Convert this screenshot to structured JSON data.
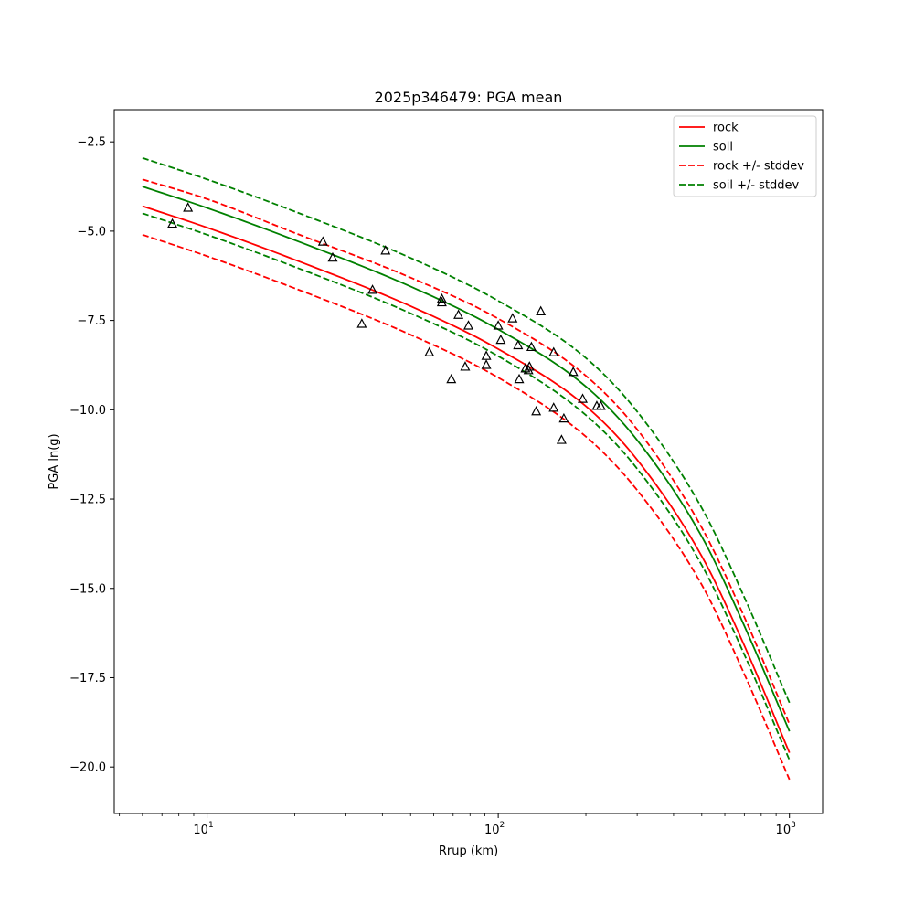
{
  "chart_data": {
    "type": "line",
    "title": "2025p346479: PGA mean",
    "xlabel": "Rrup (km)",
    "ylabel": "PGA ln(g)",
    "xscale": "log",
    "xlim": [
      4.8,
      1300
    ],
    "ylim": [
      -21.3,
      -1.6
    ],
    "xticks": [
      {
        "value": 10,
        "base": "10",
        "exp": "1"
      },
      {
        "value": 100,
        "base": "10",
        "exp": "2"
      },
      {
        "value": 1000,
        "base": "10",
        "exp": "3"
      }
    ],
    "yticks": [
      {
        "value": -2.5,
        "label": "−2.5"
      },
      {
        "value": -5.0,
        "label": "−5.0"
      },
      {
        "value": -7.5,
        "label": "−7.5"
      },
      {
        "value": -10.0,
        "label": "−10.0"
      },
      {
        "value": -12.5,
        "label": "−12.5"
      },
      {
        "value": -15.0,
        "label": "−15.0"
      },
      {
        "value": -17.5,
        "label": "−17.5"
      },
      {
        "value": -20.0,
        "label": "−20.0"
      }
    ],
    "grid": false,
    "legend_position": "top-right",
    "series": [
      {
        "name": "rock",
        "color": "#ff0000",
        "style": "solid",
        "x": [
          6,
          10,
          20,
          50,
          100,
          200,
          300,
          500,
          700,
          1000
        ],
        "y": [
          -4.3,
          -4.9,
          -5.8,
          -7.1,
          -8.3,
          -9.9,
          -11.4,
          -14.1,
          -16.6,
          -19.6
        ]
      },
      {
        "name": "soil",
        "color": "#008000",
        "style": "solid",
        "x": [
          6,
          10,
          20,
          50,
          100,
          200,
          300,
          500,
          700,
          1000
        ],
        "y": [
          -3.75,
          -4.35,
          -5.25,
          -6.55,
          -7.75,
          -9.35,
          -10.85,
          -13.55,
          -16.05,
          -19.0
        ]
      },
      {
        "name": "rock +/- stddev",
        "color": "#ff0000",
        "style": "dashed",
        "x": [
          6,
          10,
          20,
          50,
          100,
          200,
          300,
          500,
          700,
          1000
        ],
        "y": [
          -3.55,
          -4.1,
          -5.05,
          -6.3,
          -7.45,
          -9.05,
          -10.55,
          -13.3,
          -15.8,
          -18.8
        ]
      },
      {
        "name": "",
        "color": "#ff0000",
        "style": "dashed",
        "x": [
          6,
          10,
          20,
          50,
          100,
          200,
          300,
          500,
          700,
          1000
        ],
        "y": [
          -5.1,
          -5.7,
          -6.6,
          -7.9,
          -9.1,
          -10.75,
          -12.25,
          -14.9,
          -17.4,
          -20.35
        ]
      },
      {
        "name": "soil +/- stddev",
        "color": "#008000",
        "style": "dashed",
        "x": [
          6,
          10,
          20,
          50,
          100,
          200,
          300,
          500,
          700,
          1000
        ],
        "y": [
          -2.95,
          -3.55,
          -4.45,
          -5.75,
          -6.95,
          -8.55,
          -10.05,
          -12.75,
          -15.25,
          -18.2
        ]
      },
      {
        "name": "",
        "color": "#008000",
        "style": "dashed",
        "x": [
          6,
          10,
          20,
          50,
          100,
          200,
          300,
          500,
          700,
          1000
        ],
        "y": [
          -4.5,
          -5.1,
          -6.0,
          -7.3,
          -8.5,
          -10.15,
          -11.65,
          -14.35,
          -16.85,
          -19.8
        ]
      }
    ],
    "observations": {
      "marker": "triangle",
      "color": "#000000",
      "x": [
        7.6,
        8.6,
        25,
        27,
        34,
        37,
        41,
        58,
        64,
        64,
        69,
        73,
        77,
        79,
        91,
        91,
        100,
        102,
        112,
        117,
        118,
        124,
        127,
        128,
        130,
        135,
        140,
        155,
        155,
        165,
        168,
        181,
        195,
        218,
        225
      ],
      "y": [
        -4.8,
        -4.35,
        -5.3,
        -5.75,
        -7.6,
        -6.65,
        -5.55,
        -8.4,
        -6.9,
        -7.0,
        -9.15,
        -7.35,
        -8.8,
        -7.65,
        -8.5,
        -8.75,
        -7.65,
        -8.05,
        -7.45,
        -8.2,
        -9.15,
        -8.85,
        -8.9,
        -8.8,
        -8.25,
        -10.05,
        -7.25,
        -9.95,
        -8.4,
        -10.85,
        -10.25,
        -8.95,
        -9.7,
        -9.9,
        -9.9
      ]
    }
  }
}
